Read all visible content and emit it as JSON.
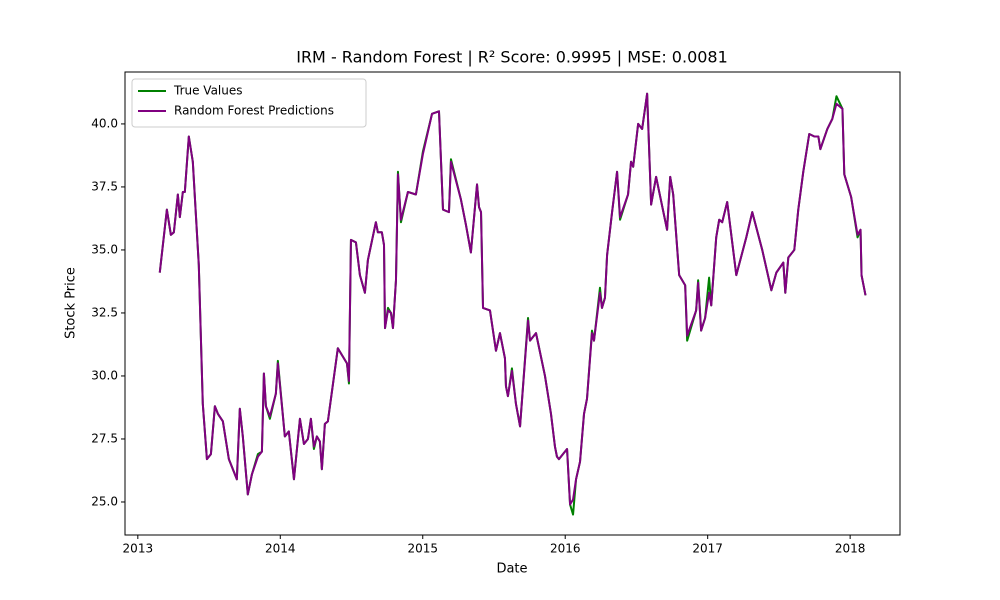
{
  "chart_data": {
    "type": "line",
    "title": "IRM - Random Forest | R² Score: 0.9995 | MSE: 0.0081",
    "xlabel": "Date",
    "ylabel": "Stock Price",
    "x": [
      2013.154,
      2013.204,
      2013.232,
      2013.253,
      2013.281,
      2013.295,
      2013.316,
      2013.33,
      2013.358,
      2013.386,
      2013.428,
      2013.456,
      2013.485,
      2013.513,
      2013.541,
      2013.562,
      2013.597,
      2013.639,
      2013.695,
      2013.716,
      2013.737,
      2013.772,
      2013.801,
      2013.843,
      2013.871,
      2013.885,
      2013.899,
      2013.927,
      2013.969,
      2013.983,
      2014.032,
      2014.06,
      2014.096,
      2014.138,
      2014.166,
      2014.194,
      2014.215,
      2014.236,
      2014.257,
      2014.278,
      2014.292,
      2014.313,
      2014.334,
      2014.404,
      2014.468,
      2014.482,
      2014.496,
      2014.531,
      2014.559,
      2014.594,
      2014.615,
      2014.671,
      2014.685,
      2014.713,
      2014.728,
      2014.735,
      2014.756,
      2014.777,
      2014.791,
      2014.812,
      2014.826,
      2014.847,
      2014.896,
      2014.952,
      2015.001,
      2015.065,
      2015.114,
      2015.142,
      2015.184,
      2015.198,
      2015.268,
      2015.303,
      2015.338,
      2015.381,
      2015.395,
      2015.409,
      2015.423,
      2015.472,
      2015.514,
      2015.542,
      2015.577,
      2015.584,
      2015.598,
      2015.626,
      2015.654,
      2015.683,
      2015.739,
      2015.753,
      2015.795,
      2015.858,
      2015.9,
      2015.928,
      2015.942,
      2015.956,
      2016.013,
      2016.034,
      2016.055,
      2016.076,
      2016.104,
      2016.132,
      2016.153,
      2016.188,
      2016.202,
      2016.244,
      2016.258,
      2016.279,
      2016.294,
      2016.329,
      2016.364,
      2016.385,
      2016.441,
      2016.462,
      2016.477,
      2016.512,
      2016.54,
      2016.575,
      2016.603,
      2016.638,
      2016.715,
      2016.737,
      2016.758,
      2016.8,
      2016.842,
      2016.856,
      2016.919,
      2016.933,
      2016.954,
      2016.982,
      2017.01,
      2017.025,
      2017.06,
      2017.081,
      2017.102,
      2017.137,
      2017.201,
      2017.271,
      2017.313,
      2017.383,
      2017.447,
      2017.482,
      2017.531,
      2017.545,
      2017.566,
      2017.608,
      2017.636,
      2017.671,
      2017.713,
      2017.749,
      2017.777,
      2017.791,
      2017.84,
      2017.875,
      2017.904,
      2017.946,
      2017.959,
      2018.007,
      2018.052,
      2018.073,
      2018.08,
      2018.108
    ],
    "series": [
      {
        "name": "True Values",
        "color": "#008000",
        "values": [
          34.1,
          36.6,
          35.6,
          35.7,
          37.2,
          36.3,
          37.3,
          37.3,
          39.5,
          38.5,
          34.4,
          28.9,
          26.7,
          26.9,
          28.8,
          28.5,
          28.2,
          26.7,
          25.9,
          28.7,
          27.6,
          25.3,
          26.1,
          26.9,
          27.0,
          30.1,
          28.8,
          28.3,
          29.3,
          30.6,
          27.6,
          27.8,
          25.9,
          28.3,
          27.3,
          27.5,
          28.3,
          27.1,
          27.6,
          27.4,
          26.3,
          28.1,
          28.2,
          31.1,
          30.5,
          29.7,
          35.4,
          35.3,
          34.0,
          33.3,
          34.6,
          36.1,
          35.7,
          35.7,
          35.2,
          31.9,
          32.7,
          32.5,
          31.9,
          33.8,
          38.1,
          36.1,
          37.3,
          37.2,
          38.9,
          40.4,
          40.5,
          36.6,
          36.5,
          38.6,
          37.0,
          36.0,
          34.9,
          37.6,
          36.7,
          36.5,
          32.7,
          32.6,
          31.0,
          31.7,
          30.7,
          29.6,
          29.2,
          30.3,
          28.9,
          28.0,
          32.3,
          31.4,
          31.7,
          30.0,
          28.5,
          27.2,
          26.8,
          26.7,
          27.1,
          24.9,
          24.5,
          25.9,
          26.6,
          28.5,
          29.1,
          31.8,
          31.4,
          33.5,
          32.7,
          33.1,
          34.8,
          36.5,
          38.1,
          36.2,
          37.2,
          38.5,
          38.3,
          40.0,
          39.8,
          41.2,
          36.8,
          37.9,
          35.8,
          37.9,
          37.2,
          34.0,
          33.6,
          31.4,
          32.6,
          33.8,
          31.8,
          32.3,
          33.9,
          32.8,
          35.5,
          36.2,
          36.1,
          36.9,
          34.0,
          35.5,
          36.5,
          35.0,
          33.4,
          34.1,
          34.5,
          33.3,
          34.7,
          35.0,
          36.6,
          38.1,
          39.6,
          39.5,
          39.5,
          39.0,
          39.8,
          40.2,
          41.1,
          40.6,
          38.0,
          37.1,
          35.5,
          35.8,
          34.0,
          33.2
        ]
      },
      {
        "name": "Random Forest Predictions",
        "color": "#800080",
        "values": [
          34.1,
          36.6,
          35.6,
          35.7,
          37.2,
          36.3,
          37.3,
          37.3,
          39.5,
          38.5,
          34.4,
          28.9,
          26.7,
          26.9,
          28.8,
          28.5,
          28.2,
          26.7,
          25.9,
          28.7,
          27.6,
          25.3,
          26.1,
          26.8,
          27.0,
          30.1,
          28.8,
          28.4,
          29.3,
          30.5,
          27.6,
          27.8,
          25.9,
          28.3,
          27.3,
          27.5,
          28.3,
          27.2,
          27.6,
          27.4,
          26.3,
          28.1,
          28.2,
          31.1,
          30.5,
          29.8,
          35.4,
          35.3,
          34.0,
          33.3,
          34.6,
          36.1,
          35.7,
          35.7,
          35.2,
          31.9,
          32.6,
          32.5,
          31.9,
          33.8,
          38.0,
          36.2,
          37.3,
          37.2,
          38.8,
          40.4,
          40.5,
          36.6,
          36.5,
          38.5,
          37.0,
          36.0,
          34.9,
          37.6,
          36.7,
          36.5,
          32.7,
          32.6,
          31.0,
          31.7,
          30.7,
          29.6,
          29.2,
          30.2,
          28.9,
          28.0,
          32.2,
          31.4,
          31.7,
          30.0,
          28.5,
          27.2,
          26.8,
          26.7,
          27.1,
          24.9,
          25.1,
          25.9,
          26.6,
          28.5,
          29.1,
          31.7,
          31.4,
          33.3,
          32.7,
          33.1,
          34.8,
          36.5,
          38.1,
          36.3,
          37.2,
          38.5,
          38.3,
          40.0,
          39.8,
          41.2,
          36.8,
          37.9,
          35.8,
          37.9,
          37.2,
          34.0,
          33.6,
          31.6,
          32.6,
          33.7,
          31.8,
          32.3,
          33.3,
          32.8,
          35.5,
          36.2,
          36.1,
          36.9,
          34.0,
          35.5,
          36.5,
          35.0,
          33.4,
          34.1,
          34.5,
          33.3,
          34.7,
          35.0,
          36.6,
          38.1,
          39.6,
          39.5,
          39.5,
          39.0,
          39.8,
          40.2,
          40.8,
          40.6,
          38.0,
          37.1,
          35.6,
          35.8,
          34.0,
          33.2
        ]
      }
    ],
    "xlim": [
      2012.91,
      2018.35
    ],
    "xticks": [
      2013,
      2014,
      2015,
      2016,
      2017,
      2018
    ],
    "ylim": [
      23.69,
      42.06
    ],
    "yticks": [
      {
        "value": 25,
        "label": "25.0"
      },
      {
        "value": 27.5,
        "label": "27.5"
      },
      {
        "value": 30,
        "label": "30.0"
      },
      {
        "value": 32.5,
        "label": "32.5"
      },
      {
        "value": 35,
        "label": "35.0"
      },
      {
        "value": 37.5,
        "label": "37.5"
      },
      {
        "value": 40,
        "label": "40.0"
      }
    ],
    "legend": "upper left",
    "grid": false
  }
}
